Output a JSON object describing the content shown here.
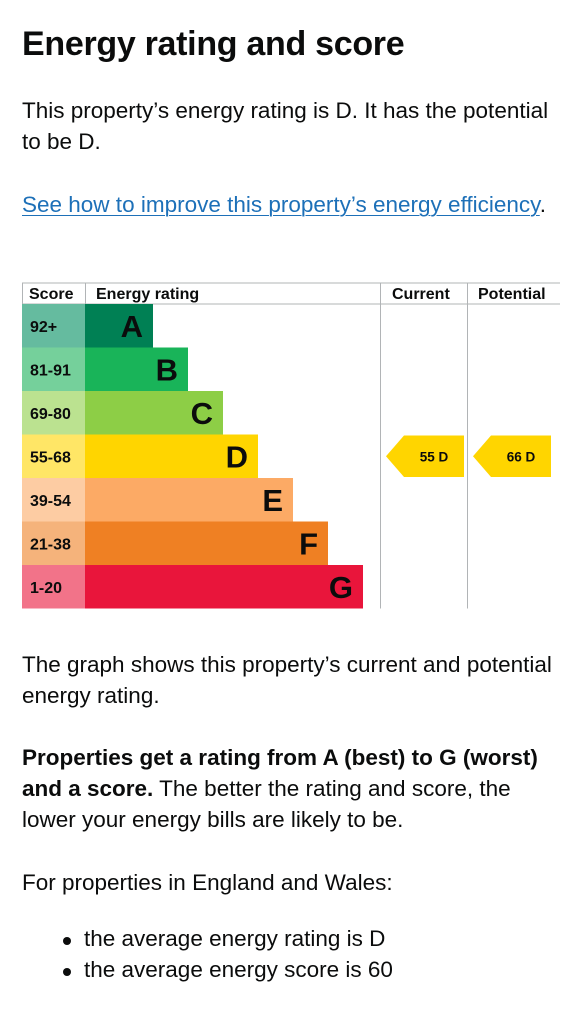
{
  "page": {
    "title": "Energy rating and score",
    "intro": "This property’s energy rating is D. It has the potential to be D.",
    "improve_link": "See how to improve this property’s energy efficiency",
    "improve_suffix": ".",
    "graph_description": "The graph shows this property’s current and potential energy rating.",
    "rating_note_bold": "Properties get a rating from A (best) to G (worst) and a score.",
    "rating_note_rest": " The better the rating and score, the lower your energy bills are likely to be.",
    "england_note": "For properties in England and Wales:",
    "averages": [
      "the average energy rating is D",
      "the average energy score is 60"
    ]
  },
  "chart_data": {
    "type": "table",
    "headers": [
      "Score",
      "Energy rating",
      "Current",
      "Potential"
    ],
    "bands": [
      {
        "band": "A",
        "range": "92+",
        "color": "#008054",
        "range_bg": "#65bb9f"
      },
      {
        "band": "B",
        "range": "81-91",
        "color": "#19b459",
        "range_bg": "#75d09b"
      },
      {
        "band": "C",
        "range": "69-80",
        "color": "#8dce46",
        "range_bg": "#bbe290"
      },
      {
        "band": "D",
        "range": "55-68",
        "color": "#ffd500",
        "range_bg": "#ffe666"
      },
      {
        "band": "E",
        "range": "39-54",
        "color": "#fcaa65",
        "range_bg": "#fdcca3"
      },
      {
        "band": "F",
        "range": "21-38",
        "color": "#ef8023",
        "range_bg": "#f5b37b"
      },
      {
        "band": "G",
        "range": "1-20",
        "color": "#e9153b",
        "range_bg": "#f27389"
      }
    ],
    "current": {
      "score": 55,
      "band": "D",
      "label": "55 D"
    },
    "potential": {
      "score": 66,
      "band": "D",
      "label": "66 D"
    },
    "marker_color": "#ffd500"
  }
}
